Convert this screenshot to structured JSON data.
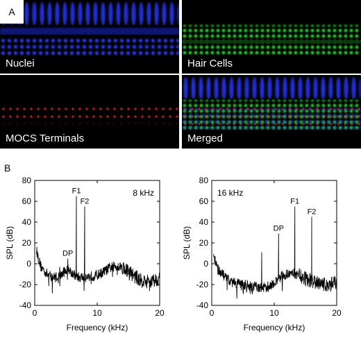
{
  "panel_a": {
    "letter": "A",
    "tiles": [
      {
        "label": "Nuclei"
      },
      {
        "label": "Hair Cells"
      },
      {
        "label": "MOCS Terminals"
      },
      {
        "label": "Merged"
      }
    ]
  },
  "panel_b": {
    "letter": "B"
  },
  "colors": {
    "nuclei": "#2b3cff",
    "hair_cells": "#2fd23a",
    "terminals": "#ff3040"
  },
  "chart_data": [
    {
      "type": "line",
      "title": "",
      "xlabel": "Frequency (kHz)",
      "ylabel": "SPL (dB)",
      "xlim": [
        0,
        20
      ],
      "ylim": [
        -40,
        80
      ],
      "xticks": [
        0,
        10,
        20
      ],
      "yticks": [
        -40,
        -20,
        0,
        20,
        40,
        60,
        80
      ],
      "annotation": "8 kHz",
      "peaks": [
        {
          "label": "DP",
          "x": 5.3,
          "y": 5
        },
        {
          "label": "F1",
          "x": 6.67,
          "y": 65
        },
        {
          "label": "F2",
          "x": 8.0,
          "y": 55
        }
      ],
      "extra_peaks": [
        {
          "x": 4.0,
          "y": -3
        }
      ],
      "envelope": {
        "x": [
          0.3,
          0.6,
          1,
          2,
          3,
          4,
          5,
          5.5,
          6,
          7,
          8,
          9,
          10,
          11,
          12,
          13,
          14,
          15,
          16,
          17,
          18,
          19,
          20
        ],
        "y": [
          13,
          5,
          -3,
          -10,
          -13,
          -12,
          -6,
          -5,
          -9,
          -13,
          -13,
          -12,
          -11,
          -8,
          -4,
          -2,
          -3,
          -7,
          -12,
          -16,
          -17,
          -16,
          -14
        ]
      }
    },
    {
      "type": "line",
      "title": "",
      "xlabel": "Frequency (kHz)",
      "ylabel": "SPL (dB)",
      "xlim": [
        0,
        20
      ],
      "ylim": [
        -40,
        80
      ],
      "xticks": [
        0,
        10,
        20
      ],
      "yticks": [
        -40,
        -20,
        0,
        20,
        40,
        60,
        80
      ],
      "annotation": "16 kHz",
      "peaks": [
        {
          "label": "DP",
          "x": 10.7,
          "y": 29
        },
        {
          "label": "F1",
          "x": 13.3,
          "y": 55
        },
        {
          "label": "F2",
          "x": 16.0,
          "y": 45
        }
      ],
      "extra_peaks": [
        {
          "x": 8.0,
          "y": 11
        }
      ],
      "envelope": {
        "x": [
          0.3,
          0.6,
          1,
          2,
          3,
          4,
          5,
          6,
          7,
          8,
          9,
          10,
          11,
          12,
          13,
          14,
          15,
          16,
          17,
          18,
          19,
          20
        ],
        "y": [
          10,
          2,
          -5,
          -12,
          -17,
          -19,
          -20,
          -21,
          -22,
          -23,
          -22,
          -18,
          -13,
          -10,
          -9,
          -11,
          -14,
          -17,
          -19,
          -20,
          -20,
          -19
        ]
      }
    }
  ]
}
